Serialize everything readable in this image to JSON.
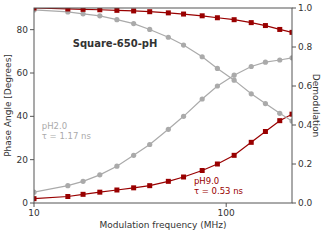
{
  "chart_data": {
    "type": "line",
    "title": "Square-650-pH",
    "x_label": "Modulation frequency (MHz)",
    "y_label": "Phase Angle [Degrees]",
    "y2_label": "Demodulation",
    "log": "x",
    "grid": false,
    "xlim": [
      10,
      220
    ],
    "xticks": [
      10,
      100
    ],
    "ylim": [
      0,
      90
    ],
    "yticks": [
      0,
      20,
      40,
      60,
      80
    ],
    "y2lim": [
      0.0,
      1.0
    ],
    "y2ticks": [
      {
        "value": 0.0,
        "label": "0.0"
      },
      0.2,
      0.4,
      0.6,
      0.8,
      {
        "value": 1.0,
        "label": "1.0"
      }
    ],
    "x": [
      10,
      15,
      18,
      22,
      27,
      33,
      40,
      50,
      60,
      75,
      90,
      110,
      135,
      160,
      190,
      220
    ],
    "series": [
      {
        "color": "#aaaaaa",
        "marker": "circle",
        "values": [
          5,
          8,
          10,
          13,
          17,
          22,
          27,
          34,
          40,
          48,
          54,
          59,
          63,
          65,
          66,
          67
        ]
      },
      {
        "color": "#990000",
        "marker": "square",
        "values": [
          2,
          3,
          4,
          5,
          6,
          7,
          8,
          10,
          12,
          15,
          18,
          22,
          28,
          33,
          38,
          41
        ]
      },
      {
        "color": "#aaaaaa",
        "marker": "circle",
        "axis": "y2",
        "values": [
          0.99,
          0.98,
          0.97,
          0.96,
          0.94,
          0.92,
          0.89,
          0.85,
          0.81,
          0.75,
          0.69,
          0.63,
          0.56,
          0.51,
          0.46,
          0.42
        ]
      },
      {
        "color": "#990000",
        "marker": "square",
        "axis": "y2",
        "values": [
          1.0,
          0.995,
          0.993,
          0.991,
          0.988,
          0.985,
          0.981,
          0.975,
          0.969,
          0.96,
          0.95,
          0.94,
          0.925,
          0.91,
          0.89,
          0.875
        ]
      }
    ],
    "annotations": [
      {
        "text": "pH2.0\nτ = 1.17 ns",
        "color": "#aaaaaa"
      },
      {
        "text": "pH9.0\nτ = 0.53 ns",
        "color": "#990000"
      }
    ]
  }
}
